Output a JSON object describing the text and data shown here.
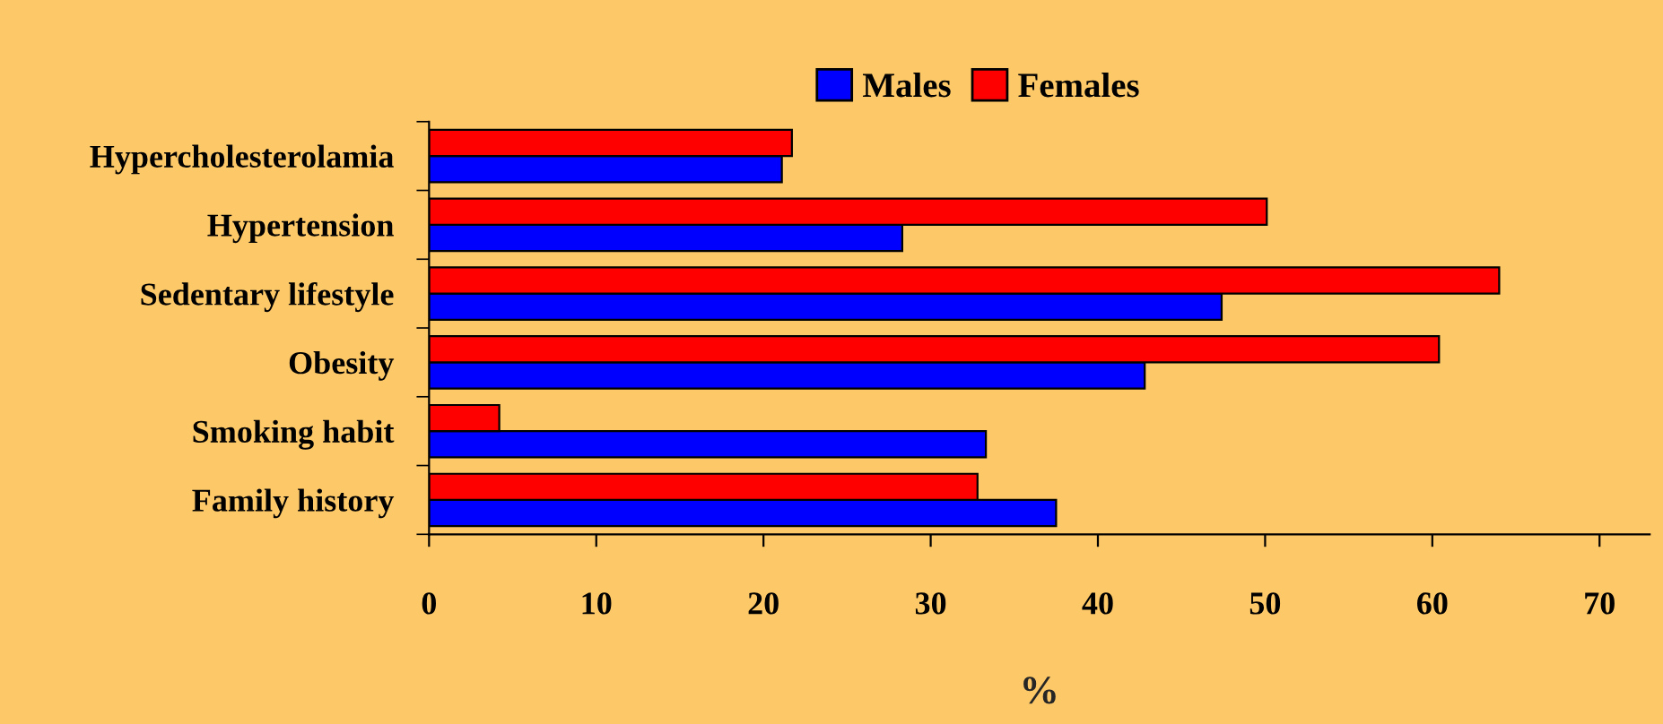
{
  "chart_data": {
    "type": "bar",
    "orientation": "horizontal",
    "xlabel": "%",
    "categories": [
      "Hypercholesterolamia",
      "Hypertension",
      "Sedentary lifestyle",
      "Obesity",
      "Smoking habit",
      "Family history"
    ],
    "series": [
      {
        "name": "Males",
        "color": "#0000ff",
        "values": [
          21.1,
          28.3,
          47.4,
          42.8,
          33.3,
          37.5
        ]
      },
      {
        "name": "Females",
        "color": "#ff0000",
        "values": [
          21.7,
          50.1,
          64.0,
          60.4,
          4.2,
          32.8
        ]
      }
    ],
    "xlim": [
      0,
      73
    ],
    "xticks": [
      0,
      10,
      20,
      30,
      40,
      50,
      60,
      70
    ],
    "grid": false,
    "legend": "top"
  }
}
